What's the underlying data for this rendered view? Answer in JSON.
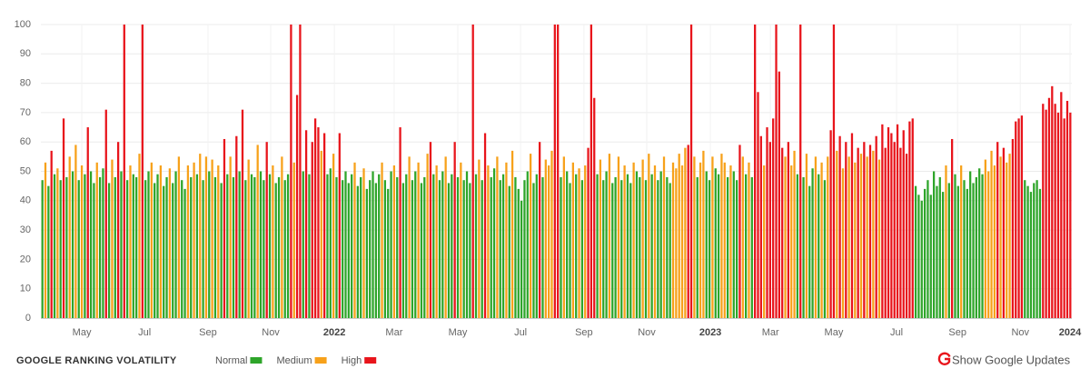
{
  "chart_data": {
    "type": "bar",
    "title": "GOOGLE RANKING VOLATILITY",
    "xlim": [
      0,
      340
    ],
    "ylim": [
      0,
      100
    ],
    "yticks": [
      0,
      10,
      20,
      30,
      40,
      50,
      60,
      70,
      80,
      90,
      100
    ],
    "xticks": [
      {
        "value": 13.5,
        "label": "May"
      },
      {
        "value": 34.2,
        "label": "Jul"
      },
      {
        "value": 55.1,
        "label": "Sep"
      },
      {
        "value": 75.8,
        "label": "Nov"
      },
      {
        "value": 96.8,
        "label": "2022"
      },
      {
        "value": 116.5,
        "label": "Mar"
      },
      {
        "value": 137.5,
        "label": "May"
      },
      {
        "value": 158.2,
        "label": "Jul"
      },
      {
        "value": 179.1,
        "label": "Sep"
      },
      {
        "value": 199.8,
        "label": "Nov"
      },
      {
        "value": 220.8,
        "label": "2023"
      },
      {
        "value": 240.6,
        "label": "Mar"
      },
      {
        "value": 261.5,
        "label": "May"
      },
      {
        "value": 282.2,
        "label": "Jul"
      },
      {
        "value": 302.3,
        "label": "Sep"
      },
      {
        "value": 323.0,
        "label": "Nov"
      },
      {
        "value": 339.4,
        "label": "2024"
      }
    ],
    "grid": true,
    "series": [
      {
        "name": "Normal",
        "color": "#2ea52a",
        "values": [
          47,
          null,
          45,
          null,
          49,
          null,
          47,
          null,
          48,
          null,
          50,
          null,
          47,
          null,
          49,
          null,
          50,
          46,
          null,
          48,
          51,
          null,
          46,
          null,
          48,
          null,
          50,
          null,
          47,
          null,
          49,
          48,
          null,
          null,
          47,
          50,
          null,
          46,
          49,
          null,
          45,
          48,
          null,
          46,
          50,
          null,
          47,
          44,
          null,
          48,
          null,
          49,
          null,
          47,
          null,
          50,
          null,
          48,
          null,
          46,
          null,
          49,
          null,
          48,
          null,
          50,
          null,
          47,
          null,
          49,
          48,
          null,
          50,
          47,
          null,
          49,
          null,
          46,
          48,
          null,
          47,
          49,
          null,
          null,
          null,
          null,
          50,
          null,
          49,
          null,
          null,
          null,
          null,
          null,
          49,
          51,
          null,
          48,
          null,
          47,
          50,
          46,
          49,
          null,
          45,
          48,
          null,
          44,
          47,
          50,
          46,
          49,
          null,
          47,
          44,
          50,
          null,
          48,
          null,
          46,
          49,
          null,
          47,
          50,
          null,
          46,
          48,
          null,
          null,
          49,
          null,
          47,
          50,
          null,
          46,
          49,
          null,
          48,
          null,
          47,
          50,
          46,
          null,
          49,
          null,
          47,
          null,
          null,
          48,
          51,
          null,
          47,
          49,
          null,
          45,
          null,
          48,
          44,
          40,
          47,
          50,
          null,
          46,
          49,
          null,
          48,
          null,
          null,
          null,
          null,
          null,
          48,
          null,
          50,
          46,
          null,
          49,
          null,
          47,
          null,
          null,
          null,
          null,
          49,
          null,
          47,
          50,
          null,
          46,
          48,
          null,
          47,
          null,
          49,
          46,
          null,
          50,
          48,
          null,
          47,
          null,
          49,
          null,
          47,
          50,
          null,
          48,
          46,
          null,
          null,
          null,
          null,
          null,
          null,
          null,
          null,
          48,
          null,
          null,
          50,
          47,
          null,
          51,
          49,
          null,
          null,
          48,
          null,
          50,
          47,
          null,
          null,
          49,
          null,
          48,
          null,
          null,
          null,
          null,
          null,
          null,
          null,
          null,
          null,
          null,
          null,
          null,
          null,
          null,
          49,
          null,
          48,
          null,
          45,
          51,
          null,
          49,
          null,
          47,
          null,
          null,
          null,
          null,
          null,
          null,
          null,
          null,
          null,
          null,
          null,
          null,
          null,
          null,
          null,
          null,
          null,
          null,
          null,
          null,
          null,
          null,
          null,
          null,
          null,
          null,
          null,
          null,
          null,
          45,
          42,
          40,
          44,
          47,
          42,
          50,
          45,
          48,
          43,
          null,
          46,
          null,
          49,
          45,
          null,
          47,
          44,
          50,
          46,
          48,
          51,
          49,
          null,
          null,
          null,
          null,
          null,
          null,
          null,
          null,
          null,
          null,
          null,
          null,
          null,
          47,
          45,
          43,
          46,
          47,
          44,
          null,
          null,
          null,
          null,
          null,
          null,
          null,
          null,
          null,
          null
        ]
      },
      {
        "name": "Medium",
        "color": "#f7a11a",
        "values": [
          null,
          53,
          null,
          null,
          null,
          51,
          null,
          null,
          null,
          55,
          null,
          59,
          null,
          52,
          null,
          null,
          null,
          null,
          53,
          null,
          null,
          null,
          null,
          54,
          null,
          null,
          null,
          null,
          null,
          52,
          null,
          null,
          56,
          null,
          null,
          null,
          53,
          null,
          null,
          52,
          null,
          null,
          51,
          null,
          null,
          55,
          null,
          null,
          52,
          null,
          53,
          null,
          56,
          null,
          55,
          null,
          54,
          null,
          52,
          null,
          null,
          null,
          55,
          null,
          null,
          null,
          null,
          null,
          54,
          null,
          null,
          59,
          null,
          null,
          null,
          null,
          52,
          null,
          null,
          55,
          null,
          null,
          null,
          53,
          null,
          null,
          null,
          null,
          null,
          null,
          null,
          null,
          57,
          null,
          null,
          null,
          56,
          null,
          null,
          null,
          null,
          null,
          null,
          53,
          null,
          null,
          51,
          null,
          null,
          null,
          null,
          null,
          53,
          null,
          null,
          null,
          52,
          null,
          null,
          null,
          null,
          55,
          null,
          null,
          53,
          null,
          null,
          56,
          null,
          null,
          52,
          null,
          null,
          55,
          null,
          null,
          null,
          null,
          53,
          null,
          null,
          null,
          null,
          null,
          54,
          null,
          null,
          52,
          null,
          null,
          55,
          null,
          null,
          53,
          null,
          57,
          null,
          null,
          null,
          null,
          null,
          56,
          null,
          null,
          null,
          null,
          54,
          52,
          57,
          null,
          null,
          null,
          55,
          null,
          null,
          53,
          null,
          51,
          null,
          52,
          null,
          null,
          null,
          null,
          54,
          null,
          null,
          56,
          null,
          null,
          55,
          null,
          52,
          null,
          null,
          53,
          null,
          null,
          54,
          null,
          56,
          null,
          52,
          null,
          null,
          55,
          null,
          null,
          53,
          51,
          56,
          52,
          58,
          null,
          null,
          55,
          null,
          53,
          57,
          null,
          null,
          55,
          null,
          null,
          56,
          53,
          null,
          52,
          null,
          null,
          null,
          55,
          null,
          53,
          null,
          null,
          null,
          null,
          52,
          null,
          null,
          null,
          null,
          null,
          null,
          55,
          null,
          52,
          57,
          null,
          null,
          null,
          56,
          null,
          null,
          55,
          null,
          53,
          null,
          55,
          null,
          null,
          57,
          null,
          51,
          null,
          55,
          null,
          53,
          null,
          56,
          null,
          55,
          null,
          57,
          null,
          54,
          null,
          null,
          null,
          null,
          null,
          null,
          null,
          null,
          null,
          null,
          null,
          null,
          null,
          null,
          null,
          null,
          null,
          null,
          null,
          null,
          null,
          52,
          null,
          null,
          null,
          null,
          52,
          null,
          null,
          null,
          null,
          null,
          null,
          null,
          54,
          50,
          57,
          52,
          null,
          55,
          null,
          53,
          56,
          null,
          null,
          null,
          null,
          null,
          null,
          null,
          null,
          null,
          null,
          null,
          null,
          null,
          null,
          null,
          null,
          null,
          null,
          null,
          null
        ]
      },
      {
        "name": "High",
        "color": "#e8141b",
        "values": [
          null,
          null,
          null,
          57,
          null,
          null,
          null,
          68,
          null,
          null,
          null,
          null,
          null,
          null,
          null,
          65,
          null,
          null,
          null,
          null,
          null,
          71,
          null,
          null,
          null,
          60,
          null,
          100,
          null,
          null,
          null,
          null,
          null,
          100,
          null,
          null,
          null,
          null,
          null,
          null,
          null,
          null,
          null,
          null,
          null,
          null,
          null,
          null,
          null,
          null,
          null,
          null,
          null,
          null,
          null,
          null,
          null,
          null,
          null,
          null,
          61,
          null,
          null,
          null,
          62,
          null,
          71,
          null,
          null,
          null,
          null,
          null,
          null,
          null,
          60,
          null,
          null,
          null,
          null,
          null,
          null,
          null,
          100,
          null,
          76,
          100,
          null,
          64,
          null,
          60,
          68,
          65,
          null,
          63,
          null,
          null,
          null,
          null,
          63,
          null,
          null,
          null,
          null,
          null,
          null,
          null,
          null,
          null,
          null,
          null,
          null,
          null,
          null,
          null,
          null,
          null,
          null,
          null,
          65,
          null,
          null,
          null,
          null,
          null,
          null,
          null,
          null,
          null,
          60,
          null,
          null,
          null,
          null,
          null,
          null,
          null,
          60,
          null,
          null,
          null,
          null,
          null,
          100,
          null,
          null,
          null,
          63,
          null,
          null,
          null,
          null,
          null,
          null,
          null,
          null,
          null,
          null,
          null,
          null,
          null,
          null,
          null,
          null,
          null,
          60,
          null,
          null,
          null,
          null,
          100,
          100,
          null,
          null,
          null,
          null,
          null,
          null,
          null,
          null,
          null,
          58,
          100,
          75,
          null,
          null,
          null,
          null,
          null,
          null,
          null,
          null,
          null,
          null,
          null,
          null,
          null,
          null,
          null,
          null,
          null,
          null,
          null,
          null,
          null,
          null,
          null,
          null,
          null,
          null,
          null,
          null,
          null,
          null,
          59,
          100,
          null,
          null,
          null,
          null,
          null,
          null,
          null,
          null,
          null,
          null,
          null,
          null,
          null,
          null,
          null,
          59,
          null,
          null,
          null,
          null,
          100,
          77,
          62,
          null,
          65,
          60,
          68,
          100,
          84,
          58,
          null,
          60,
          null,
          null,
          null,
          100,
          null,
          null,
          null,
          null,
          null,
          null,
          null,
          null,
          null,
          64,
          100,
          null,
          62,
          null,
          60,
          null,
          63,
          null,
          58,
          null,
          60,
          null,
          59,
          null,
          62,
          null,
          66,
          58,
          65,
          63,
          60,
          66,
          58,
          64,
          56,
          67,
          68,
          null,
          null,
          null,
          null,
          null,
          null,
          null,
          null,
          null,
          null,
          null,
          null,
          61,
          null,
          null,
          null,
          null,
          null,
          null,
          null,
          null,
          null,
          null,
          null,
          null,
          null,
          null,
          60,
          null,
          58,
          null,
          null,
          61,
          67,
          68,
          69,
          null,
          null,
          null,
          null,
          null,
          null,
          73,
          71,
          75,
          79,
          73,
          70,
          77,
          68,
          74,
          70
        ]
      }
    ]
  },
  "controls": {
    "toggle": "Show Google Updates"
  }
}
